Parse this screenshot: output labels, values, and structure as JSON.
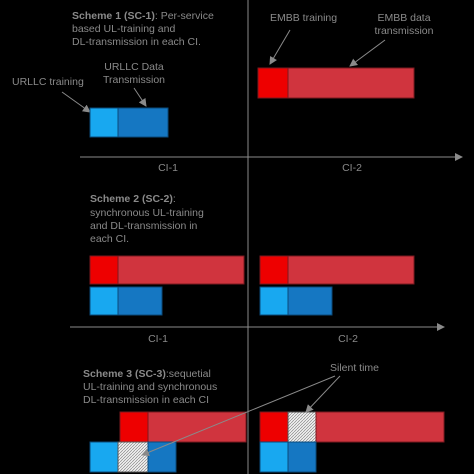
{
  "scheme1": {
    "heading": "Scheme 1 (SC-1)",
    "rest": ": Per-service",
    "lines": [
      "based UL-training and",
      "DL-transmission in each CI."
    ]
  },
  "labels": {
    "embb_training": "EMBB training",
    "embb_data": [
      "EMBB data",
      "transmission"
    ],
    "urllc_training": "URLLC training",
    "urllc_data": [
      "URLLC Data",
      "Transmission"
    ],
    "silent_time": "Silent time"
  },
  "axis1": {
    "ci1": "CI-1",
    "ci2": "CI-2"
  },
  "scheme2": {
    "heading": "Scheme 2 (SC-2)",
    "rest": ":",
    "lines": [
      "synchronous  UL-training",
      "and  DL-transmission in",
      "each CI."
    ]
  },
  "axis2": {
    "ci1": "CI-1",
    "ci2": "CI-2"
  },
  "scheme3": {
    "heading": "Scheme 3 (SC-3)",
    "rest": ":sequetial",
    "lines": [
      "UL-training and synchronous",
      "DL-transmission in each CI"
    ]
  }
}
